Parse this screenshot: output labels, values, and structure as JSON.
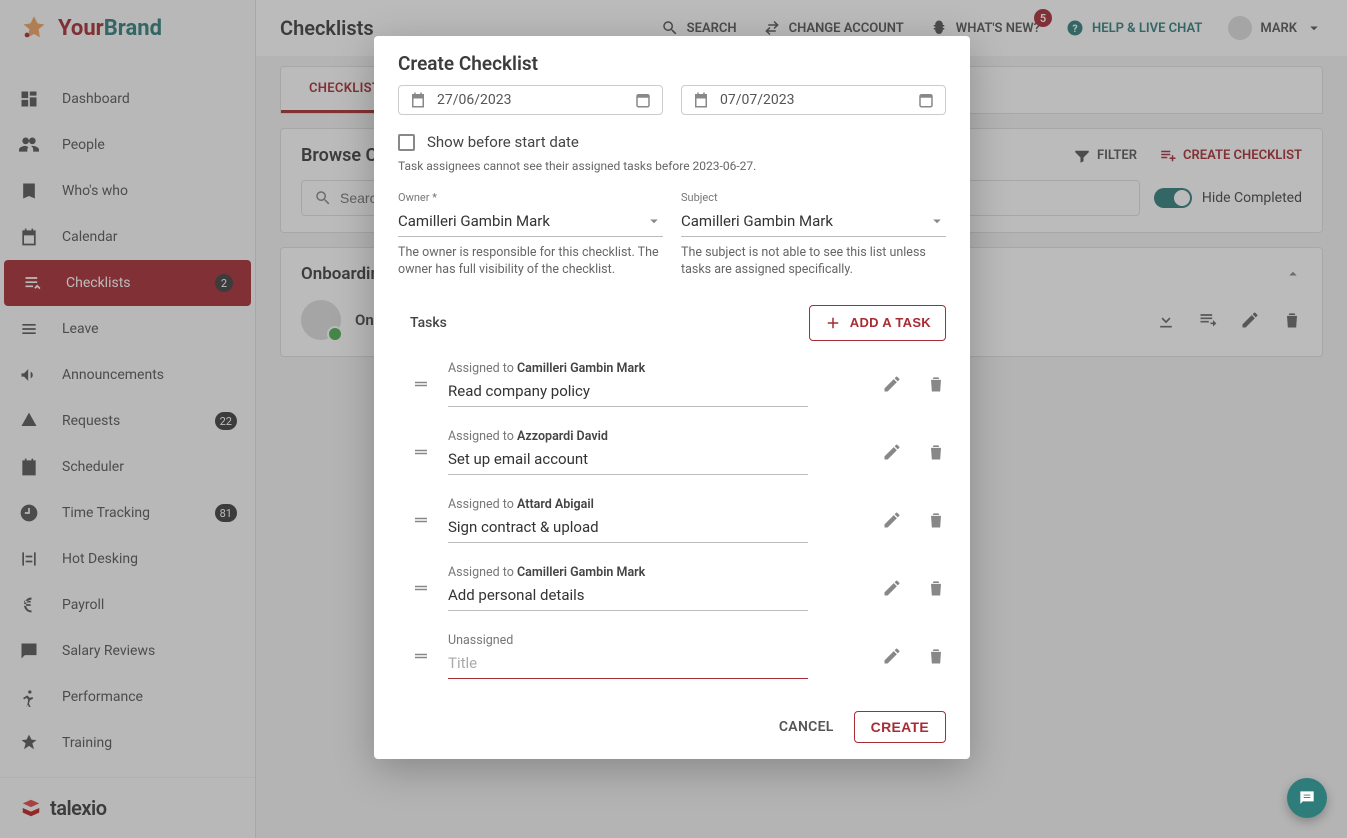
{
  "brand": {
    "your": "Your",
    "brand": "Brand"
  },
  "sidebar": {
    "items": [
      {
        "label": "Dashboard",
        "icon": "dashboard"
      },
      {
        "label": "People",
        "icon": "people"
      },
      {
        "label": "Who's who",
        "icon": "badge"
      },
      {
        "label": "Calendar",
        "icon": "calendar"
      },
      {
        "label": "Checklists",
        "icon": "checklist",
        "active": true,
        "badge": "2"
      },
      {
        "label": "Leave",
        "icon": "leave"
      },
      {
        "label": "Announcements",
        "icon": "announce"
      },
      {
        "label": "Requests",
        "icon": "requests",
        "badge": "22"
      },
      {
        "label": "Scheduler",
        "icon": "scheduler"
      },
      {
        "label": "Time Tracking",
        "icon": "timer",
        "badge": "81"
      },
      {
        "label": "Hot Desking",
        "icon": "desk"
      },
      {
        "label": "Payroll",
        "icon": "euro"
      },
      {
        "label": "Salary Reviews",
        "icon": "review"
      },
      {
        "label": "Performance",
        "icon": "run"
      },
      {
        "label": "Training",
        "icon": "train"
      }
    ],
    "footer": "talexio"
  },
  "topbar": {
    "title": "Checklists",
    "search": "SEARCH",
    "change": "CHANGE ACCOUNT",
    "news": "WHAT'S NEW?",
    "news_badge": "5",
    "help": "HELP & LIVE CHAT",
    "user": "MARK"
  },
  "tabs": {
    "tab1": "CHECKLISTS"
  },
  "browse": {
    "title": "Browse Checklists",
    "filter": "FILTER",
    "create": "CREATE CHECKLIST",
    "search_placeholder": "Search...",
    "hide": "Hide Completed"
  },
  "list": {
    "title": "Onboarding",
    "row_label": "Onboarding"
  },
  "modal": {
    "title": "Create Checklist",
    "start_date": "27/06/2023",
    "end_date": "07/07/2023",
    "show_before": "Show before start date",
    "hint": "Task assignees cannot see their assigned tasks before 2023-06-27.",
    "owner_label": "Owner *",
    "owner_value": "Camilleri Gambin Mark",
    "owner_helper": "The owner is responsible for this checklist. The owner has full visibility of the checklist.",
    "subject_label": "Subject",
    "subject_value": "Camilleri Gambin Mark",
    "subject_helper": "The subject is not able to see this list unless tasks are assigned specifically.",
    "tasks_label": "Tasks",
    "add_task": "ADD A TASK",
    "assigned_to": "Assigned to ",
    "unassigned": "Unassigned",
    "title_placeholder": "Title",
    "tasks": [
      {
        "assignee": "Camilleri Gambin Mark",
        "title": "Read company policy"
      },
      {
        "assignee": "Azzopardi David",
        "title": "Set up email account"
      },
      {
        "assignee": "Attard Abigail",
        "title": "Sign contract & upload"
      },
      {
        "assignee": "Camilleri Gambin Mark",
        "title": "Add personal details"
      }
    ],
    "cancel": "CANCEL",
    "create": "CREATE"
  },
  "colors": {
    "primary": "#a72c34",
    "teal": "#2e7d7a"
  }
}
